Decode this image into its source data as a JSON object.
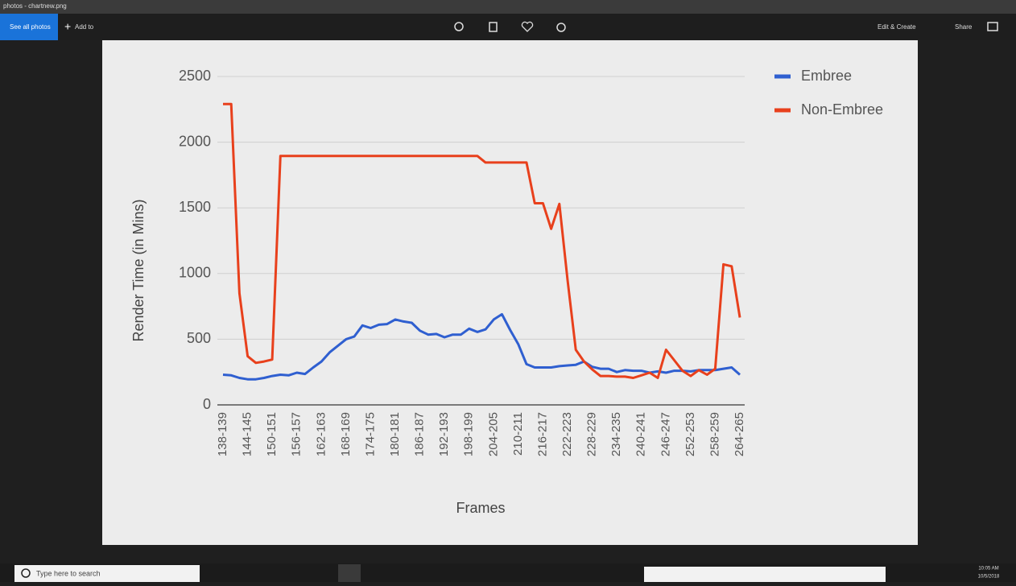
{
  "window": {
    "title": "photos - chartnew.png",
    "see_all": "See all photos",
    "add_to": "Add to",
    "edit_create": "Edit & Create",
    "share": "Share"
  },
  "taskbar": {
    "search": "Type here to search",
    "time": "10:05 AM",
    "date": "10/5/2018"
  },
  "chart_data": {
    "type": "line",
    "y_label": "Render Time (in Mins)",
    "x_label": "Frames",
    "categories": [
      "138-139",
      null,
      null,
      "144-145",
      null,
      null,
      "150-151",
      null,
      null,
      "156-157",
      null,
      null,
      "162-163",
      null,
      null,
      "168-169",
      null,
      null,
      "174-175",
      null,
      null,
      "180-181",
      null,
      null,
      "186-187",
      null,
      null,
      "192-193",
      null,
      null,
      "198-199",
      null,
      null,
      "204-205",
      null,
      null,
      "210-211",
      null,
      null,
      "216-217",
      null,
      null,
      "222-223",
      null,
      null,
      "228-229",
      null,
      null,
      "234-235",
      null,
      null,
      "240-241",
      null,
      null,
      "246-247",
      null,
      null,
      "252-253",
      null,
      null,
      "258-259",
      null,
      null,
      "264-265"
    ],
    "series": [
      {
        "name": "Embree",
        "color": "#2f5fd0",
        "values": [
          230,
          225,
          205,
          195,
          195,
          205,
          220,
          230,
          225,
          245,
          235,
          285,
          330,
          400,
          450,
          500,
          520,
          605,
          585,
          610,
          615,
          650,
          635,
          625,
          565,
          535,
          540,
          515,
          535,
          535,
          580,
          555,
          575,
          650,
          690,
          570,
          460,
          310,
          285,
          285,
          285,
          295,
          300,
          305,
          330,
          290,
          275,
          275,
          250,
          265,
          260,
          260,
          245,
          255,
          245,
          260,
          260,
          255,
          265,
          265,
          265,
          275,
          285,
          230
        ]
      },
      {
        "name": "Non-Embree",
        "color": "#e8401c",
        "values": [
          2290,
          2290,
          850,
          370,
          320,
          330,
          345,
          1895,
          1895,
          1895,
          1895,
          1895,
          1895,
          1895,
          1895,
          1895,
          1895,
          1895,
          1895,
          1895,
          1895,
          1895,
          1895,
          1895,
          1895,
          1895,
          1895,
          1895,
          1895,
          1895,
          1895,
          1895,
          1845,
          1845,
          1845,
          1845,
          1845,
          1845,
          1535,
          1535,
          1340,
          1530,
          950,
          420,
          330,
          270,
          220,
          220,
          215,
          215,
          205,
          225,
          245,
          205,
          420,
          340,
          260,
          220,
          265,
          230,
          275,
          1070,
          1055,
          665
        ]
      }
    ],
    "ylim": [
      0,
      2500
    ],
    "yticks": [
      0,
      500,
      1000,
      1500,
      2000,
      2500
    ],
    "grid": true,
    "legend": "right"
  }
}
